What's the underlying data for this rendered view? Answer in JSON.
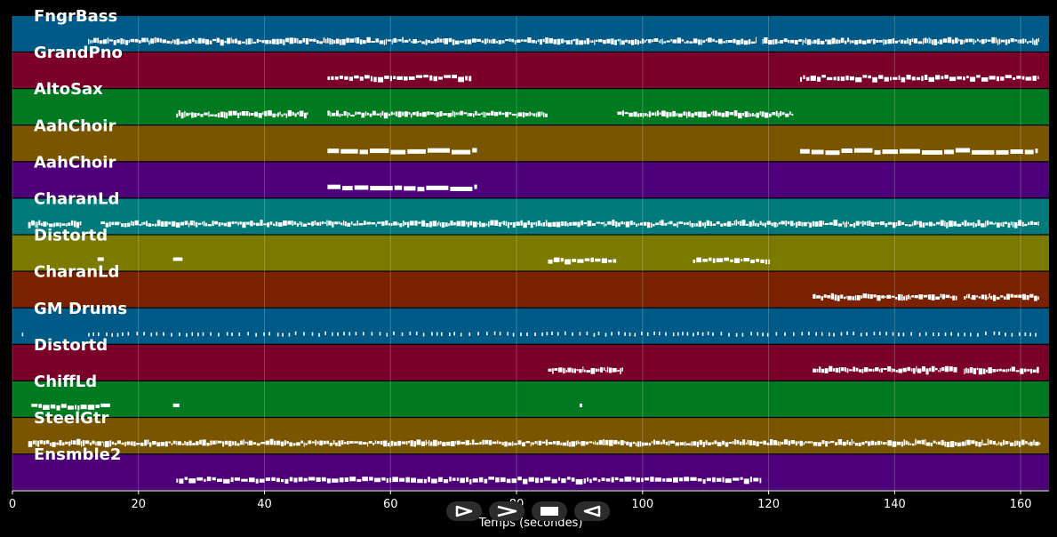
{
  "chart_data": {
    "type": "piano-roll",
    "xlabel": "Temps (secondes)",
    "xlim": [
      0,
      164.5
    ],
    "xticks": [
      0,
      20,
      40,
      60,
      80,
      100,
      120,
      140,
      160
    ],
    "grid": true,
    "tracks": [
      {
        "name": "FngrBass",
        "color": "#005a87",
        "segments": [
          [
            12,
            26
          ],
          [
            26,
            118
          ],
          [
            119,
            130
          ],
          [
            130,
            163
          ]
        ],
        "style": "dense"
      },
      {
        "name": "GrandPno",
        "color": "#7a0029",
        "segments": [
          [
            50,
            73
          ],
          [
            125,
            163
          ]
        ],
        "style": "blocks"
      },
      {
        "name": "AltoSax",
        "color": "#007a20",
        "segments": [
          [
            26,
            47
          ],
          [
            50,
            85
          ],
          [
            96,
            124
          ]
        ],
        "style": "dense"
      },
      {
        "name": "AahChoir",
        "color": "#7a5500",
        "segments": [
          [
            50,
            74
          ],
          [
            125,
            163
          ]
        ],
        "style": "long"
      },
      {
        "name": "AahChoir",
        "color": "#4e007a",
        "segments": [
          [
            50,
            74
          ]
        ],
        "style": "long"
      },
      {
        "name": "CharanLd",
        "color": "#007a7a",
        "segments": [
          [
            2.5,
            11
          ],
          [
            14,
            163
          ]
        ],
        "style": "dense"
      },
      {
        "name": "Distortd",
        "color": "#7a7a00",
        "segments": [
          [
            13.5,
            14.5
          ],
          [
            25.5,
            27
          ],
          [
            85,
            96
          ],
          [
            108,
            120
          ]
        ],
        "style": "blocks"
      },
      {
        "name": "CharanLd",
        "color": "#7a2200",
        "segments": [
          [
            127,
            150
          ],
          [
            151,
            163
          ]
        ],
        "style": "dense"
      },
      {
        "name": "GM Drums",
        "color": "#005a87",
        "segments": [
          [
            1.5,
            2.5
          ],
          [
            12,
            163
          ]
        ],
        "style": "sparse"
      },
      {
        "name": "Distortd",
        "color": "#7a0029",
        "segments": [
          [
            85,
            97
          ],
          [
            127,
            150
          ],
          [
            151,
            163
          ]
        ],
        "style": "dense"
      },
      {
        "name": "ChiffLd",
        "color": "#007a20",
        "segments": [
          [
            3,
            14
          ],
          [
            14,
            15.5
          ],
          [
            25.5,
            26.5
          ],
          [
            90,
            90.4
          ]
        ],
        "style": "blocks"
      },
      {
        "name": "SteelGtr",
        "color": "#7a5500",
        "segments": [
          [
            2.5,
            163
          ]
        ],
        "style": "dense"
      },
      {
        "name": "Ensmble2",
        "color": "#4e007a",
        "segments": [
          [
            26,
            119
          ]
        ],
        "style": "blocks"
      }
    ]
  },
  "controls": [
    {
      "name": "play-button",
      "icon": "play-icon"
    },
    {
      "name": "fast-forward-button",
      "icon": "fast-forward-icon"
    },
    {
      "name": "stop-button",
      "icon": "stop-icon"
    },
    {
      "name": "rewind-button",
      "icon": "rewind-icon"
    }
  ]
}
